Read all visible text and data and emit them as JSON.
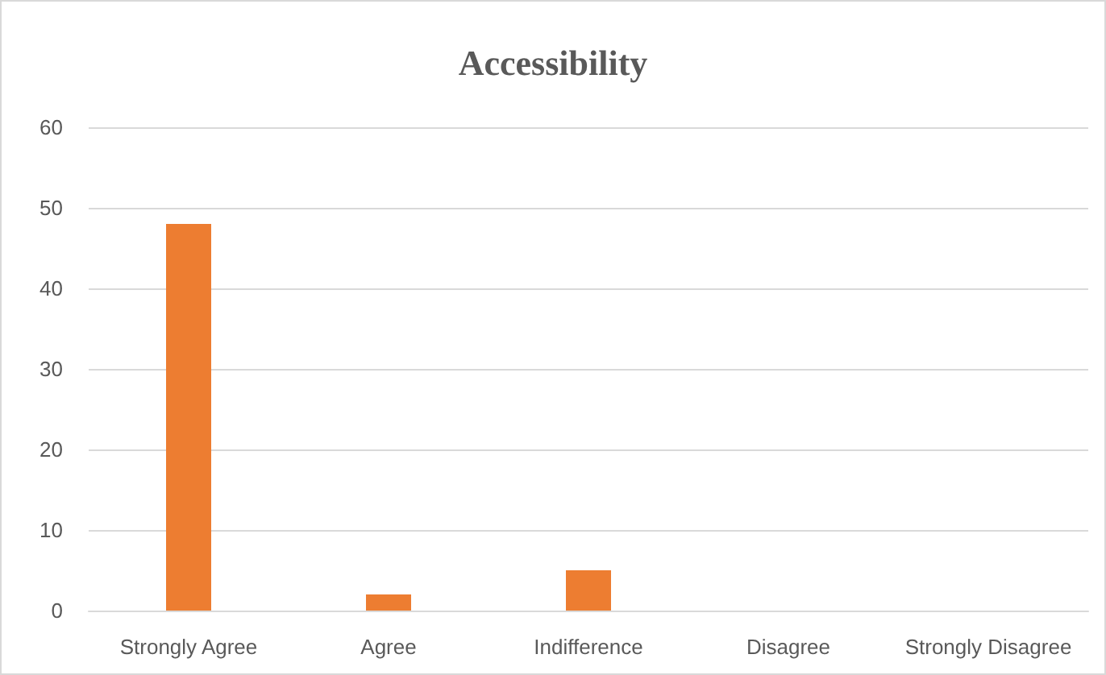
{
  "chart_data": {
    "type": "bar",
    "title": "Accessibility",
    "categories": [
      "Strongly Agree",
      "Agree",
      "Indifference",
      "Disagree",
      "Strongly Disagree"
    ],
    "values": [
      48,
      2,
      5,
      0,
      0
    ],
    "color": "#ed7d31",
    "ylim": [
      0,
      60
    ],
    "yticks": [
      0,
      10,
      20,
      30,
      40,
      50,
      60
    ],
    "grid": "y"
  }
}
